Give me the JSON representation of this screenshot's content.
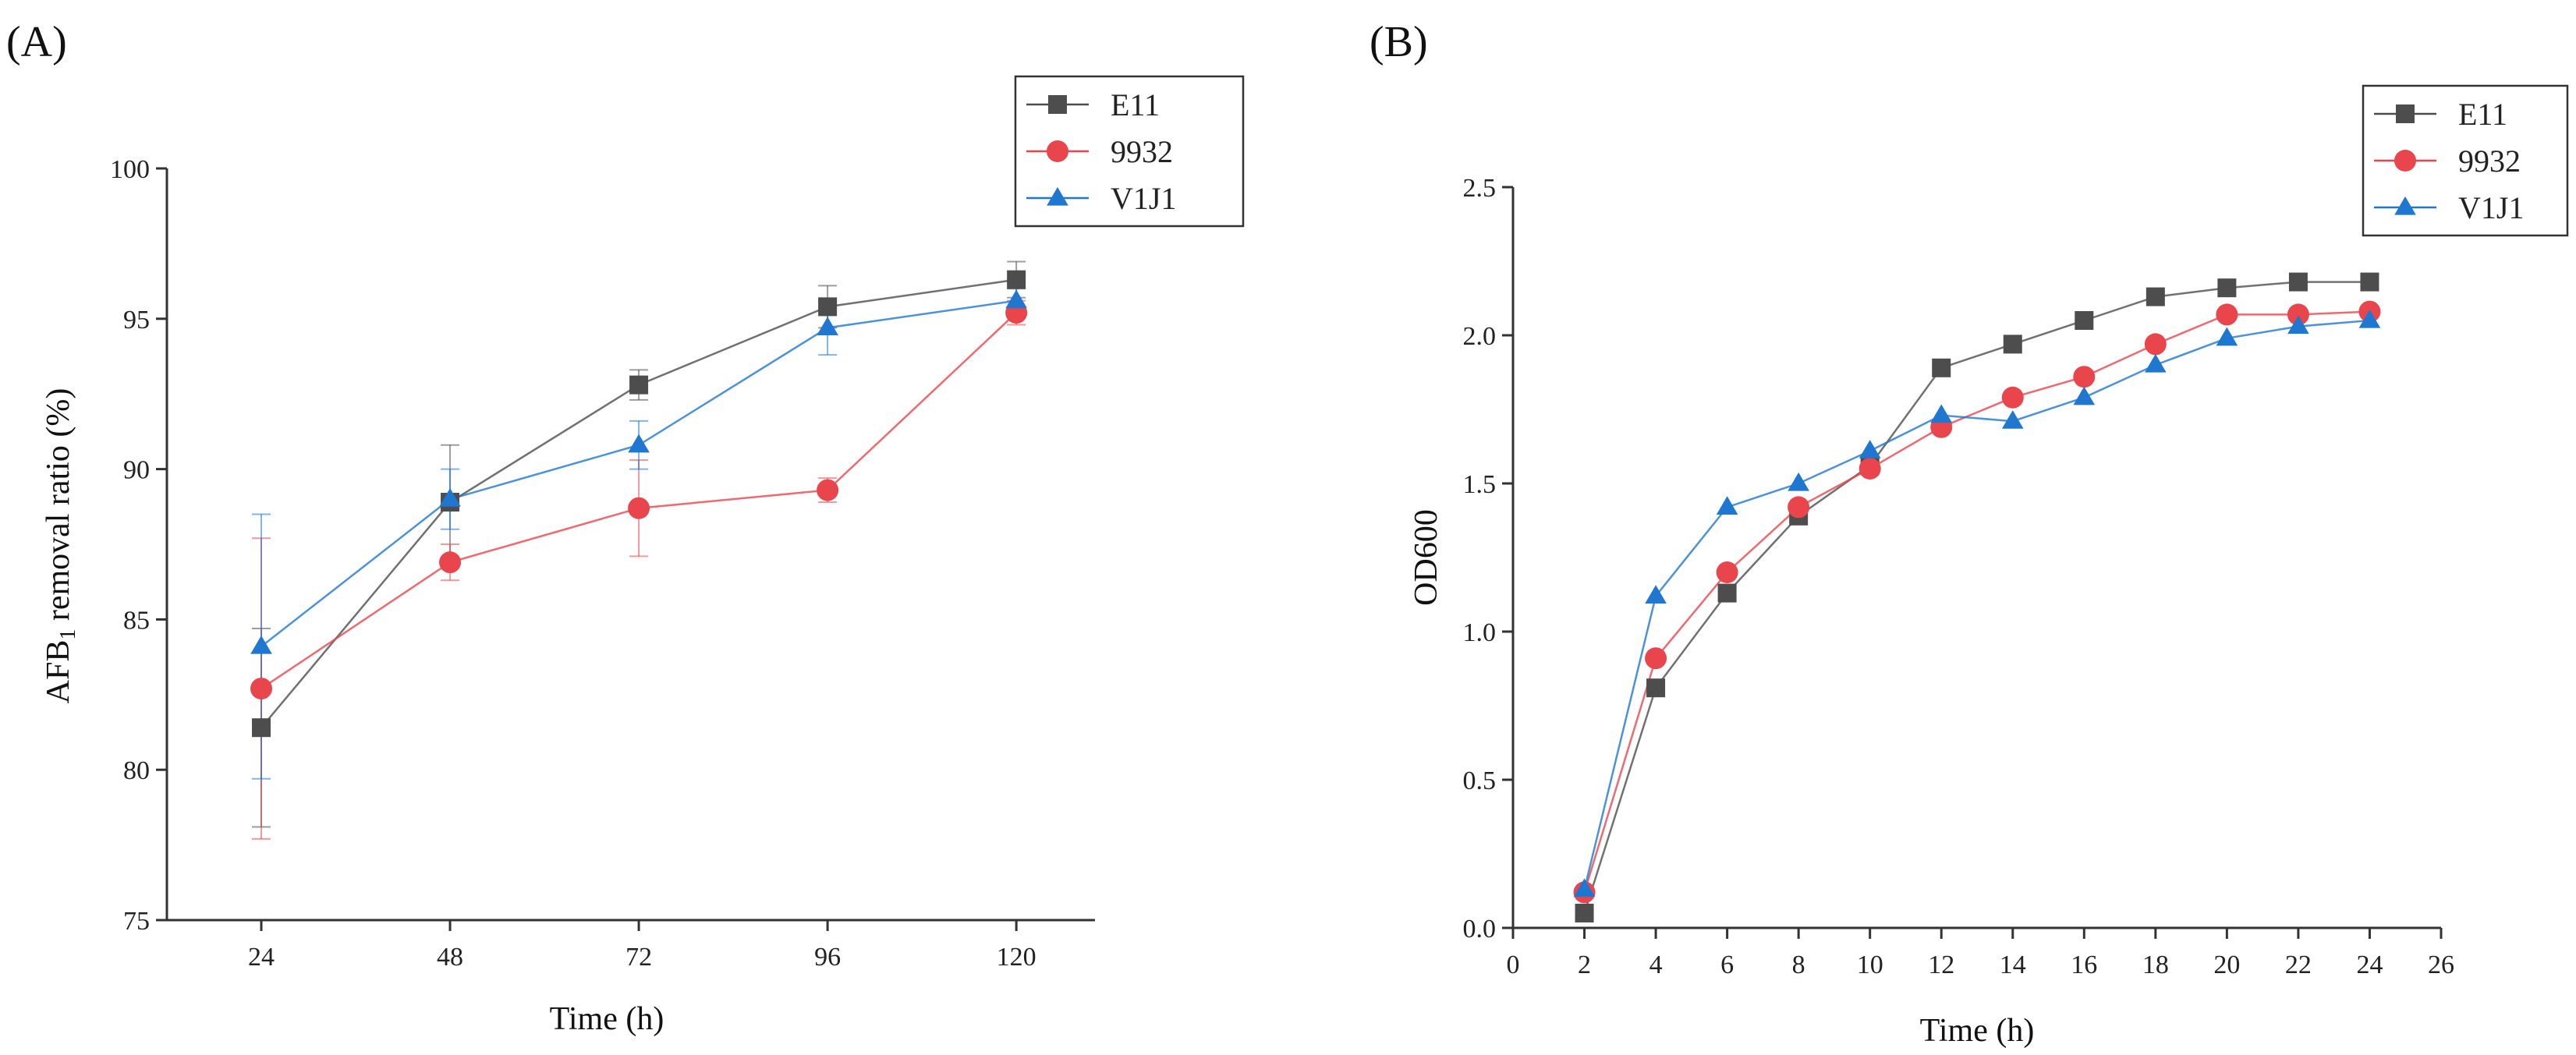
{
  "chart_data": [
    {
      "panel_label": "(A)",
      "type": "line",
      "xlabel": "Time (h)",
      "ylabel": "AFB1 removal ratio (%)",
      "ylabel_main": "AFB",
      "ylabel_sub": "1",
      "ylabel_rest": " removal ratio (%)",
      "x": [
        24,
        48,
        72,
        96,
        120
      ],
      "xticks": [
        24,
        48,
        72,
        96,
        120
      ],
      "xticklabels": [
        "24",
        "48",
        "72",
        "96",
        "120"
      ],
      "yticks": [
        75,
        80,
        85,
        90,
        95,
        100
      ],
      "yticklabels": [
        "75",
        "80",
        "85",
        "90",
        "95",
        "100"
      ],
      "xlim": [
        12,
        130
      ],
      "ylim": [
        75,
        100
      ],
      "legend_position": "top-right",
      "series": [
        {
          "name": "E11",
          "color": "#4d4d4d",
          "marker": "square",
          "values": [
            81.4,
            88.9,
            92.8,
            95.4,
            96.3
          ],
          "errors": [
            3.3,
            1.9,
            0.5,
            0.7,
            0.6
          ]
        },
        {
          "name": "9932",
          "color": "#e8454c",
          "marker": "circle",
          "values": [
            82.7,
            86.9,
            88.7,
            89.3,
            95.2
          ],
          "errors": [
            5.0,
            0.6,
            1.6,
            0.4,
            0.4
          ]
        },
        {
          "name": "V1J1",
          "color": "#1f77d0",
          "marker": "triangle",
          "values": [
            84.1,
            89.0,
            90.8,
            94.7,
            95.6
          ],
          "errors": [
            4.4,
            1.0,
            0.8,
            0.9,
            0.4
          ]
        }
      ]
    },
    {
      "panel_label": "(B)",
      "type": "line",
      "xlabel": "Time (h)",
      "ylabel": "OD600",
      "x": [
        2,
        4,
        6,
        8,
        10,
        12,
        14,
        16,
        18,
        20,
        22,
        24
      ],
      "xticks": [
        0,
        2,
        4,
        6,
        8,
        10,
        12,
        14,
        16,
        18,
        20,
        22,
        24,
        26
      ],
      "xticklabels": [
        "0",
        "2",
        "4",
        "6",
        "8",
        "10",
        "12",
        "14",
        "16",
        "18",
        "20",
        "22",
        "24",
        "26"
      ],
      "yticks": [
        0.0,
        0.5,
        1.0,
        1.5,
        2.0,
        2.5
      ],
      "yticklabels": [
        "0.0",
        "0.5",
        "1.0",
        "1.5",
        "2.0",
        "2.5"
      ],
      "xlim": [
        0,
        26
      ],
      "ylim": [
        0,
        2.5
      ],
      "legend_position": "top-right",
      "series": [
        {
          "name": "E11",
          "color": "#4d4d4d",
          "marker": "square",
          "values": [
            0.05,
            0.81,
            1.13,
            1.39,
            1.56,
            1.89,
            1.97,
            2.05,
            2.13,
            2.16,
            2.18,
            2.18
          ]
        },
        {
          "name": "9932",
          "color": "#e8454c",
          "marker": "circle",
          "values": [
            0.12,
            0.91,
            1.2,
            1.42,
            1.55,
            1.69,
            1.79,
            1.86,
            1.97,
            2.07,
            2.07,
            2.08
          ]
        },
        {
          "name": "V1J1",
          "color": "#1f77d0",
          "marker": "triangle",
          "values": [
            0.13,
            1.12,
            1.42,
            1.5,
            1.61,
            1.73,
            1.71,
            1.79,
            1.9,
            1.99,
            2.03,
            2.05
          ]
        }
      ]
    }
  ]
}
